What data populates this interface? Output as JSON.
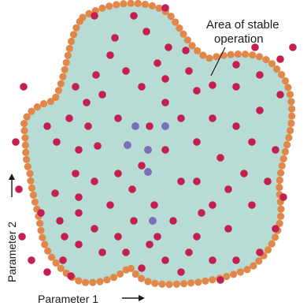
{
  "diagram": {
    "region_label_line1": "Area of stable",
    "region_label_line2": "operation",
    "x_axis_label": "Parameter 1",
    "y_axis_label": "Parameter 2"
  },
  "colors": {
    "stable_region_fill": "#b7dcd6",
    "boundary_point": "#e2874a",
    "unstable_point": "#c4204f",
    "interior_point": "#7a6fb8",
    "label_text": "#1a1a1a"
  },
  "legend_semantics": {
    "boundary_points": "boundary-point",
    "unstable_points": "unstable-point",
    "interior_points": "interior-point"
  }
}
